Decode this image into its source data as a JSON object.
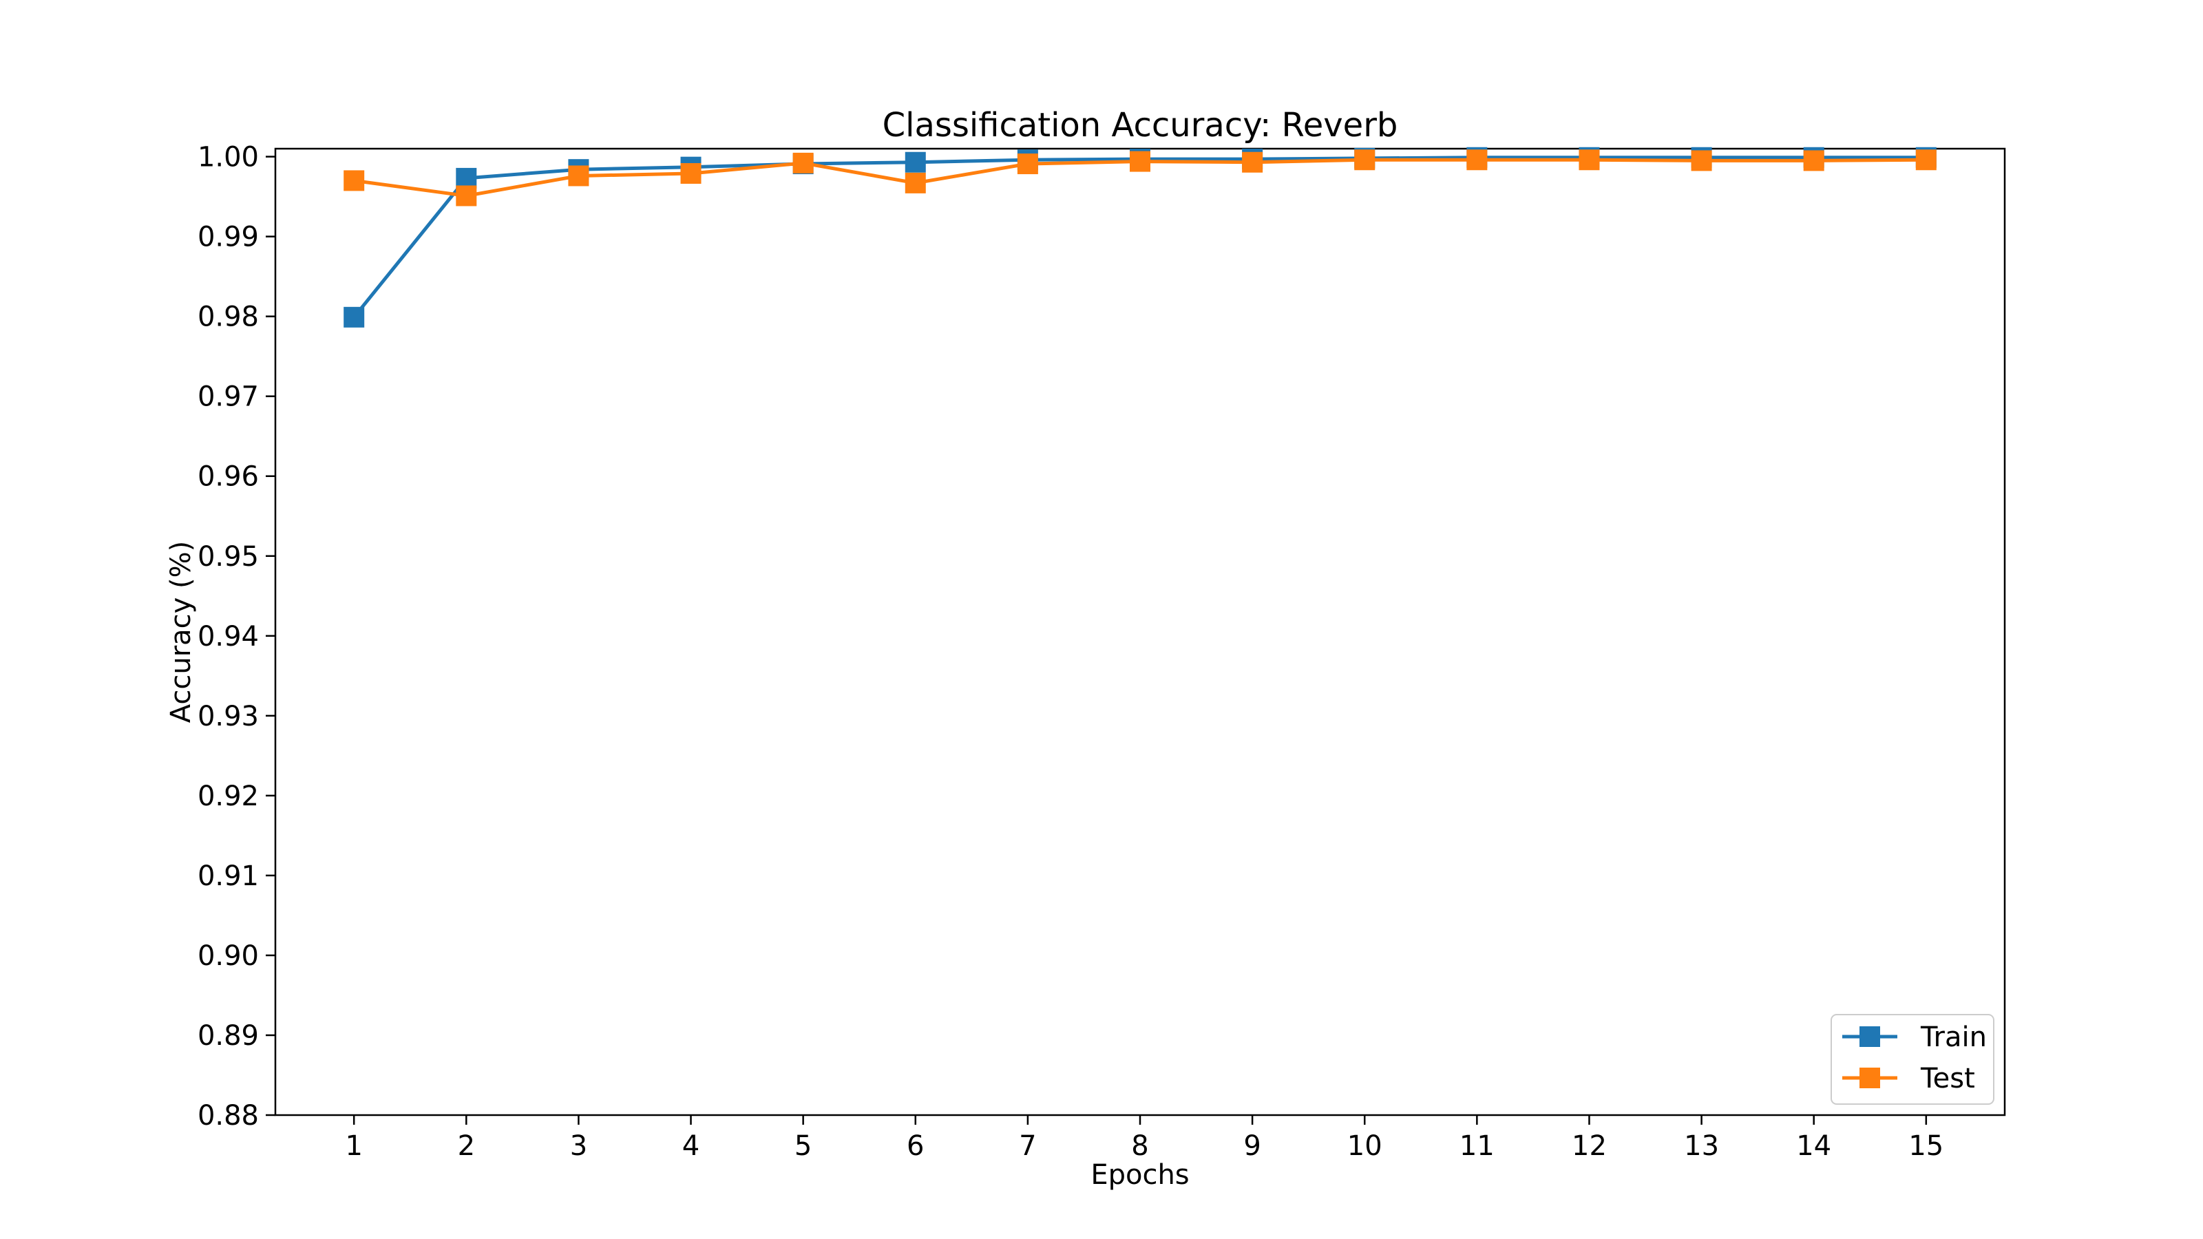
{
  "chart_data": {
    "type": "line",
    "title": "Classification Accuracy: Reverb",
    "xlabel": "Epochs",
    "ylabel": "Accuracy (%)",
    "x": [
      1,
      2,
      3,
      4,
      5,
      6,
      7,
      8,
      9,
      10,
      11,
      12,
      13,
      14,
      15
    ],
    "xlim": [
      0.3,
      15.7
    ],
    "ylim": [
      0.88,
      1.001
    ],
    "yticks": [
      0.88,
      0.89,
      0.9,
      0.91,
      0.92,
      0.93,
      0.94,
      0.95,
      0.96,
      0.97,
      0.98,
      0.99,
      1.0
    ],
    "ytick_labels": [
      "0.88",
      "0.89",
      "0.90",
      "0.91",
      "0.92",
      "0.93",
      "0.94",
      "0.95",
      "0.96",
      "0.97",
      "0.98",
      "0.99",
      "1.00"
    ],
    "grid": false,
    "legend_position": "lower-right",
    "marker": "square",
    "series": [
      {
        "name": "Train",
        "color": "#1f77b4",
        "values": [
          0.9799,
          0.9973,
          0.9984,
          0.9987,
          0.9991,
          0.9993,
          0.9996,
          0.9997,
          0.9997,
          0.9998,
          0.9999,
          0.9999,
          0.9999,
          0.9999,
          0.9999
        ]
      },
      {
        "name": "Test",
        "color": "#ff7f0e",
        "values": [
          0.997,
          0.9951,
          0.9976,
          0.9979,
          0.9992,
          0.9967,
          0.9991,
          0.9994,
          0.9993,
          0.9996,
          0.9996,
          0.9996,
          0.9995,
          0.9995,
          0.9996
        ]
      }
    ]
  }
}
